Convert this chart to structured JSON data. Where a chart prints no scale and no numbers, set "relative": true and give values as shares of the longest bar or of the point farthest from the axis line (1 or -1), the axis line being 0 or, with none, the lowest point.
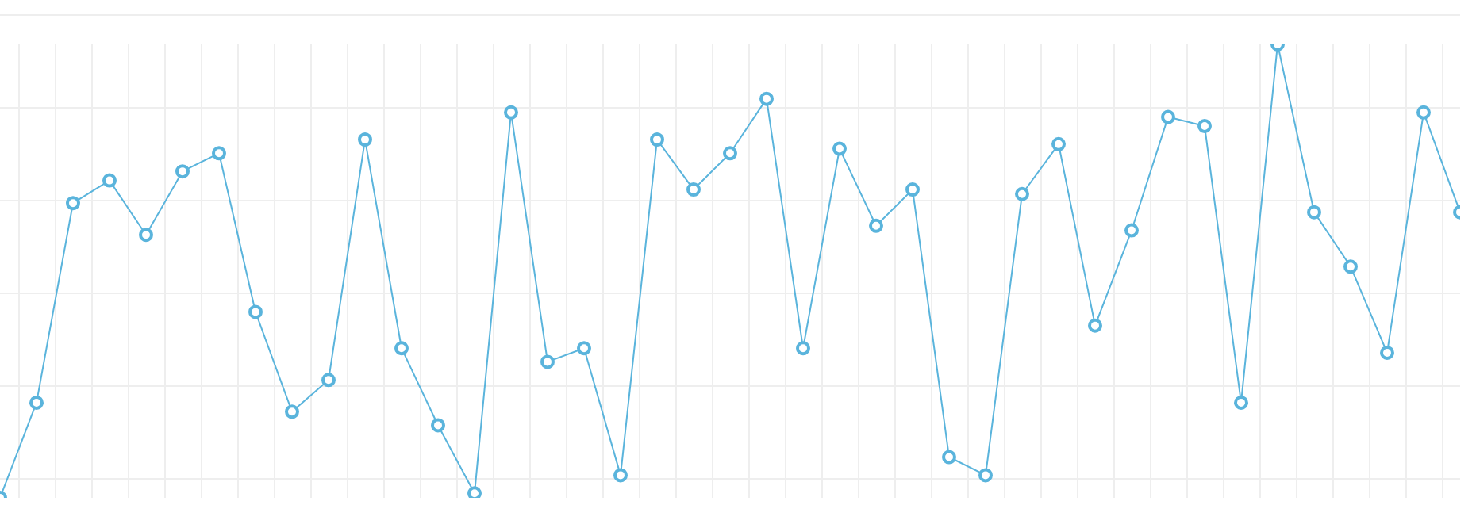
{
  "chart_data": {
    "type": "line",
    "relative": true,
    "grid": true,
    "marker": "circle",
    "categories": [
      null,
      null,
      null,
      null,
      null,
      null,
      null,
      null,
      null,
      null,
      null,
      null,
      null,
      null,
      null,
      null,
      null,
      null,
      null,
      null,
      null,
      null,
      null,
      null,
      null,
      null,
      null,
      null,
      null,
      null,
      null,
      null,
      null,
      null,
      null,
      null,
      null,
      null,
      null,
      null,
      null
    ],
    "series": [
      {
        "color": "#5ab4dc",
        "values": [
          0,
          0.21,
          0.65,
          0.7,
          0.58,
          0.72,
          0.76,
          0.41,
          0.19,
          0.26,
          0.79,
          0.33,
          0.16,
          0.01,
          0.85,
          0.3,
          0.33,
          0.05,
          0.79,
          0.68,
          0.76,
          0.88,
          0.33,
          0.77,
          0.6,
          0.68,
          0.09,
          0.05,
          0.67,
          0.78,
          0.38,
          0.59,
          0.84,
          0.82,
          0.21,
          1,
          0.63,
          0.51,
          0.32,
          0.85,
          0.63
        ]
      }
    ]
  }
}
